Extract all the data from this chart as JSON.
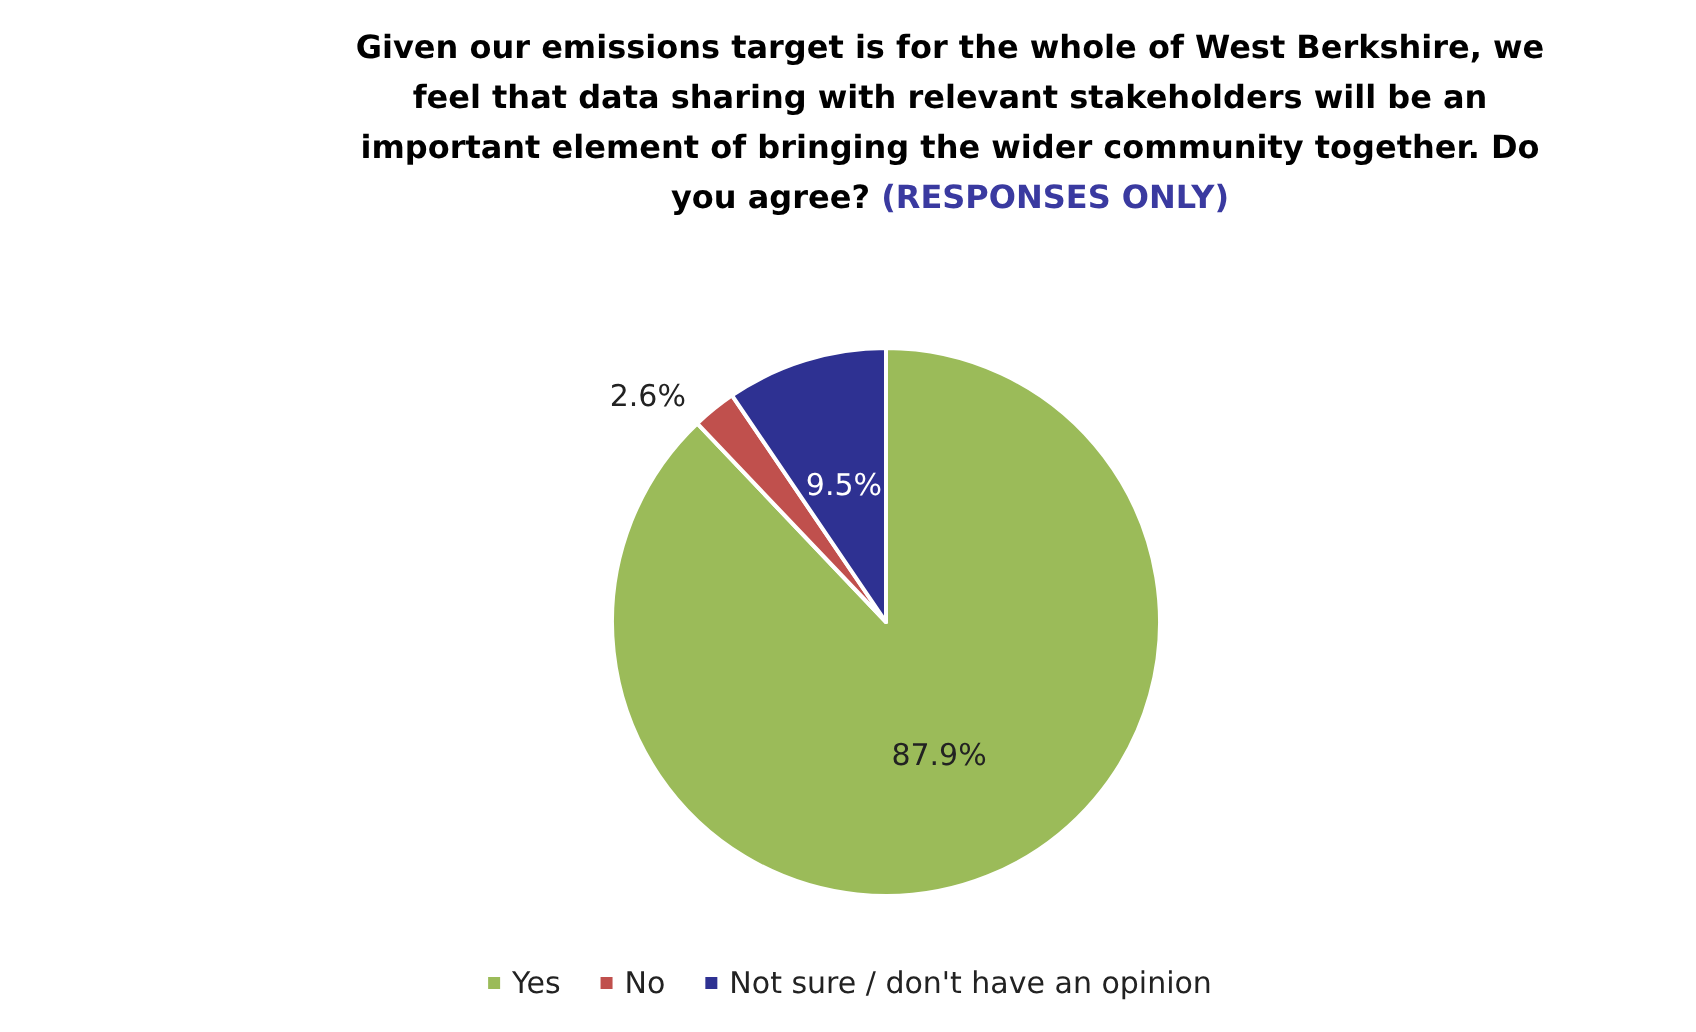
{
  "chart_data": {
    "type": "pie",
    "title": "Given our emissions target is for the whole of West Berkshire, we\nfeel that data sharing with relevant stakeholders will be an\nimportant element of bringing the wider community together. Do\nyou agree?",
    "subtitle": "(RESPONSES ONLY)",
    "categories": [
      "Yes",
      "No",
      "Not sure / don't have an opinion"
    ],
    "values": [
      87.9,
      2.6,
      9.5
    ],
    "value_labels": [
      "87.9%",
      "2.6%",
      "9.5%"
    ],
    "colors": [
      "#9bbb59",
      "#c0504d",
      "#2e3192"
    ],
    "legend": "bottom"
  }
}
